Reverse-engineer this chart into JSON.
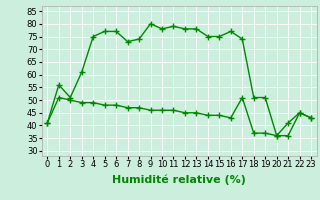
{
  "line1_x": [
    0,
    1,
    2,
    3,
    4,
    5,
    6,
    7,
    8,
    9,
    10,
    11,
    12,
    13,
    14,
    15,
    16,
    17,
    18,
    19,
    20,
    21,
    22,
    23
  ],
  "line1_y": [
    41,
    56,
    51,
    61,
    75,
    77,
    77,
    73,
    74,
    80,
    78,
    79,
    78,
    78,
    75,
    75,
    77,
    74,
    51,
    51,
    36,
    41,
    45,
    43
  ],
  "line2_x": [
    0,
    1,
    2,
    3,
    4,
    5,
    6,
    7,
    8,
    9,
    10,
    11,
    12,
    13,
    14,
    15,
    16,
    17,
    18,
    19,
    20,
    21,
    22,
    23
  ],
  "line2_y": [
    41,
    51,
    50,
    49,
    49,
    48,
    48,
    47,
    47,
    46,
    46,
    46,
    45,
    45,
    44,
    44,
    43,
    51,
    37,
    37,
    36,
    36,
    45,
    43
  ],
  "line_color": "#008800",
  "marker": "+",
  "markersize": 4,
  "markeredgewidth": 1.0,
  "linewidth": 1.0,
  "xlabel": "Humidité relative (%)",
  "xlabel_fontsize": 8,
  "xlabel_color": "#008800",
  "yticks": [
    30,
    35,
    40,
    45,
    50,
    55,
    60,
    65,
    70,
    75,
    80,
    85
  ],
  "xlim": [
    -0.5,
    23.5
  ],
  "ylim": [
    28,
    87
  ],
  "background_color": "#cceedd",
  "grid_color": "#aaddcc",
  "tick_fontsize": 6,
  "figwidth": 3.2,
  "figheight": 2.0,
  "dpi": 100
}
